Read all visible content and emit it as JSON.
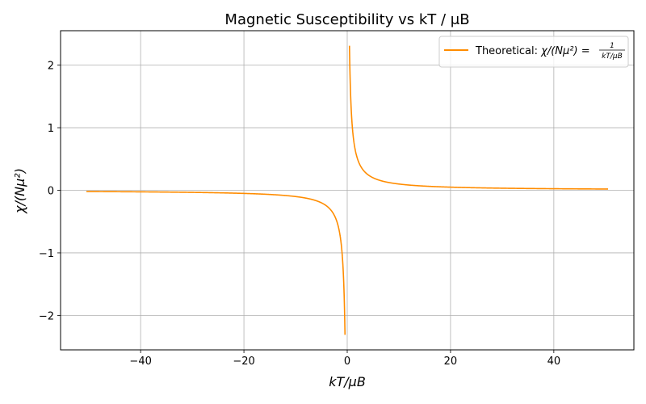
{
  "chart_data": {
    "type": "line",
    "title": "Magnetic Susceptibility vs kT / μB",
    "xlabel": "kT/μB",
    "ylabel": "χ/(Nμ²)",
    "xlim": [
      -55.5,
      55.5
    ],
    "ylim": [
      -2.55,
      2.55
    ],
    "xticks": [
      -40,
      -20,
      0,
      20,
      40
    ],
    "yticks": [
      -2,
      -1,
      0,
      1,
      2
    ],
    "xtick_labels": [
      "−40",
      "−20",
      "0",
      "20",
      "40"
    ],
    "ytick_labels": [
      "−2",
      "−1",
      "0",
      "1",
      "2"
    ],
    "grid": true,
    "legend": {
      "placement": "top-right"
    },
    "series": [
      {
        "name": "Theoretical: χ/(Nμ²) = 1/(kT/μB)",
        "legend_prefix": "Theoretical: ",
        "legend_lhs": "χ/(Nμ²) =",
        "legend_num": "1",
        "legend_den": "kT/μB",
        "color": "#ff8c00",
        "function": "reciprocal",
        "segments": [
          {
            "x_start": -50.5,
            "x_end": -0.433
          },
          {
            "x_start": 0.433,
            "x_end": 50.5
          }
        ],
        "sample_points": [
          {
            "x": -50,
            "y": -0.02
          },
          {
            "x": -20,
            "y": -0.05
          },
          {
            "x": -5,
            "y": -0.2
          },
          {
            "x": -1,
            "y": -1
          },
          {
            "x": -0.433,
            "y": -2.31
          },
          {
            "x": 0.433,
            "y": 2.31
          },
          {
            "x": 1,
            "y": 1
          },
          {
            "x": 5,
            "y": 0.2
          },
          {
            "x": 20,
            "y": 0.05
          },
          {
            "x": 50,
            "y": 0.02
          }
        ]
      }
    ]
  }
}
